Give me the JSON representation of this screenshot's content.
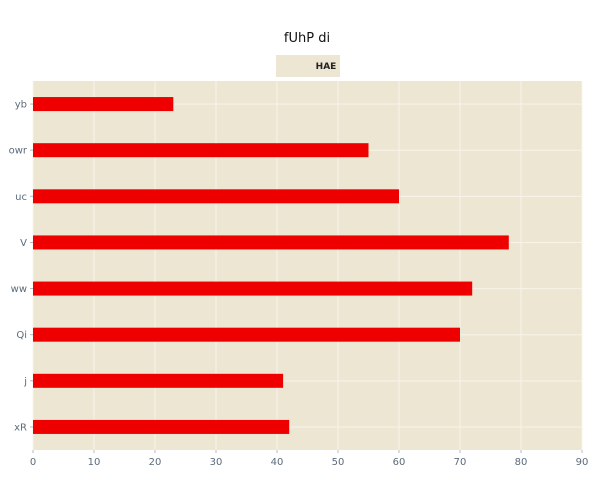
{
  "chart_data": {
    "type": "bar",
    "orientation": "horizontal",
    "title": "fUhP di",
    "xlabel": "",
    "ylabel": "",
    "categories": [
      "yb",
      "owr",
      "uc",
      "V",
      "ww",
      "Qi",
      "j",
      "xR"
    ],
    "series": [
      {
        "name": "HAE",
        "values": [
          23,
          55,
          60,
          78,
          72,
          70,
          41,
          42
        ]
      }
    ],
    "xlim": [
      0,
      90
    ],
    "x_ticks": [
      0,
      10,
      20,
      30,
      40,
      50,
      60,
      70,
      80,
      90
    ],
    "grid": true,
    "legend_position": "top-center"
  },
  "colors": {
    "bar": "#ee0000",
    "plot_background": "#ede6d3",
    "legend_background": "#ede6d3",
    "grid": "#f8f4ea",
    "tick_label": "#5b6b7a",
    "title": "#111111"
  }
}
